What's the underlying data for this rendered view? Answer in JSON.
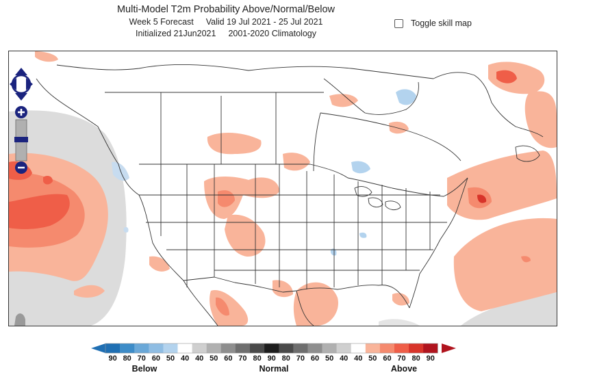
{
  "header": {
    "title": "Multi-Model T2m Probability Above/Normal/Below",
    "forecast_week": "Week 5 Forecast",
    "valid_range": "Valid 19 Jul 2021 - 25 Jul 2021",
    "initialized": "Initialized 21Jun2021",
    "climatology": "2001-2020 Climatology"
  },
  "controls": {
    "toggle_skill_map_label": "Toggle skill map",
    "toggle_skill_map_checked": false
  },
  "legend": {
    "below_label": "Below",
    "normal_label": "Normal",
    "above_label": "Above",
    "below_values": [
      "90",
      "80",
      "70",
      "60",
      "50",
      "40"
    ],
    "normal_values": [
      "40",
      "50",
      "60",
      "70",
      "80",
      "90",
      "80",
      "70",
      "60",
      "50",
      "40"
    ],
    "above_values": [
      "40",
      "50",
      "60",
      "70",
      "80",
      "90"
    ],
    "below_colors": [
      "#1f6fb3",
      "#3d8cc8",
      "#6aa8d8",
      "#8fbde3",
      "#b3d3ee",
      "#ffffff"
    ],
    "normal_colors": [
      "#cfcfcf",
      "#b0b0b0",
      "#8e8e8e",
      "#6e6e6e",
      "#4a4a4a",
      "#1e1e1e",
      "#4a4a4a",
      "#6e6e6e",
      "#8e8e8e",
      "#b0b0b0",
      "#cfcfcf"
    ],
    "above_colors": [
      "#ffffff",
      "#f9b49a",
      "#f58a6e",
      "#ef5e48",
      "#d8342a",
      "#b0141e"
    ]
  },
  "map": {
    "region": "North America"
  }
}
